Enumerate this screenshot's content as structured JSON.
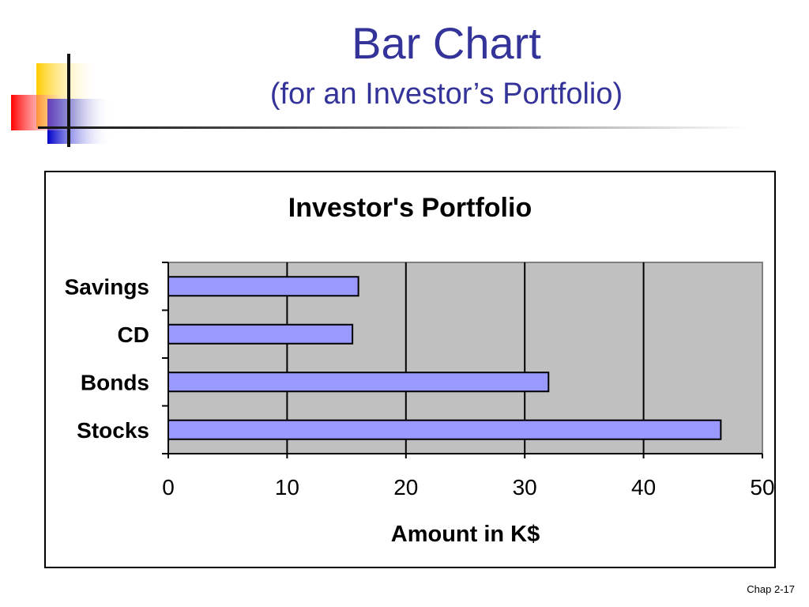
{
  "slide": {
    "title": "Bar Chart",
    "subtitle": "(for an Investor’s Portfolio)",
    "footer": "Chap 2-17"
  },
  "colors": {
    "title": "#333399",
    "bar_fill": "#9999ff",
    "plot_bg": "#c0c0c0"
  },
  "chart_data": {
    "type": "bar",
    "orientation": "horizontal",
    "title": "Investor's Portfolio",
    "xlabel": "Amount in K$",
    "ylabel": "",
    "categories": [
      "Savings",
      "CD",
      "Bonds",
      "Stocks"
    ],
    "values": [
      16,
      15.5,
      32,
      46.5
    ],
    "xlim": [
      0,
      50
    ],
    "xticks": [
      0,
      10,
      20,
      30,
      40,
      50
    ],
    "grid": "vertical",
    "legend": "none"
  }
}
